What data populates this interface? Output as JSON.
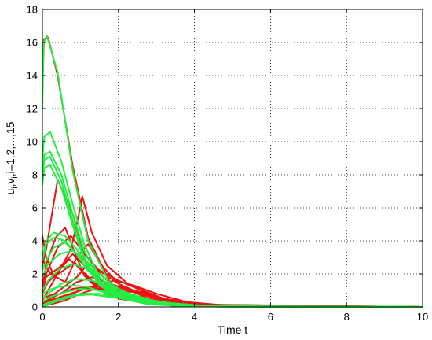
{
  "chart_data": {
    "type": "line",
    "xlabel": "Time t",
    "ylabel": "u_i, v_i, i=1,2,...,15",
    "ylabel_parts": {
      "u": "u",
      "i1": "i",
      "sep1": ",v",
      "i2": "i",
      "rest": ",i=1,2,...,15"
    },
    "xlim": [
      0,
      10
    ],
    "ylim": [
      0,
      18
    ],
    "xticks": [
      0,
      2,
      4,
      6,
      8,
      10
    ],
    "yticks": [
      0,
      2,
      4,
      6,
      8,
      10,
      12,
      14,
      16,
      18
    ],
    "grid": true,
    "legend": "none",
    "colors": {
      "u": "#ee1111",
      "v": "#22ee44"
    },
    "series": [
      {
        "group": "u",
        "x": [
          0,
          0.04,
          0.15,
          0.4,
          0.8,
          1.2,
          1.8,
          2.6,
          3.6,
          5,
          10
        ],
        "y": [
          13.0,
          16.2,
          16.3,
          14.0,
          8.5,
          4.2,
          1.4,
          0.4,
          0.1,
          0.02,
          0
        ]
      },
      {
        "group": "u",
        "x": [
          0,
          0.1,
          0.4,
          0.75,
          0.95,
          1.2,
          1.6,
          2.1,
          3,
          4.2,
          10
        ],
        "y": [
          0.6,
          2.0,
          3.6,
          4.3,
          3.7,
          3.0,
          1.8,
          0.9,
          0.3,
          0.05,
          0
        ]
      },
      {
        "group": "u",
        "x": [
          0,
          0.1,
          0.35,
          0.6,
          0.85,
          1.1,
          1.5,
          2,
          2.8,
          4,
          10
        ],
        "y": [
          1.2,
          2.6,
          4.2,
          4.8,
          3.3,
          1.9,
          1.0,
          0.5,
          0.2,
          0.04,
          0
        ]
      },
      {
        "group": "u",
        "x": [
          0,
          0.15,
          0.45,
          0.75,
          0.95,
          1.05,
          1.3,
          1.7,
          2.3,
          3.2,
          4.5,
          10
        ],
        "y": [
          0.4,
          1.0,
          2.2,
          3.5,
          5.5,
          6.7,
          4.5,
          2.5,
          1.3,
          0.5,
          0.08,
          0
        ]
      },
      {
        "group": "u",
        "x": [
          0,
          0.1,
          0.4,
          0.8,
          1.1,
          1.5,
          2,
          2.6,
          3.4,
          4.5,
          10
        ],
        "y": [
          2.5,
          3.5,
          7.7,
          5.6,
          3.2,
          2.2,
          1.4,
          0.8,
          0.3,
          0.06,
          0
        ]
      },
      {
        "group": "u",
        "x": [
          0,
          0.2,
          0.5,
          0.9,
          1.2,
          1.6,
          2,
          2.4,
          3,
          4,
          10
        ],
        "y": [
          0.3,
          0.6,
          1.1,
          1.8,
          2.6,
          2.1,
          1.6,
          1.2,
          0.6,
          0.15,
          0
        ]
      },
      {
        "group": "u",
        "x": [
          0,
          0.1,
          0.3,
          0.6,
          0.9,
          1.2,
          1.6,
          2.1,
          2.8,
          3.8,
          10
        ],
        "y": [
          4.3,
          3.0,
          1.9,
          1.5,
          3.0,
          3.8,
          2.4,
          1.2,
          0.5,
          0.1,
          0
        ]
      },
      {
        "group": "u",
        "x": [
          0,
          0.2,
          0.6,
          1.0,
          1.4,
          1.9,
          2.4,
          3.0,
          3.8,
          5,
          10
        ],
        "y": [
          0.2,
          0.4,
          0.7,
          1.0,
          1.3,
          1.6,
          1.3,
          0.8,
          0.3,
          0.05,
          0
        ]
      },
      {
        "group": "u",
        "x": [
          0,
          0.15,
          0.4,
          0.7,
          1.0,
          1.3,
          1.7,
          2.2,
          2.9,
          3.8,
          10
        ],
        "y": [
          0.9,
          1.5,
          2.1,
          2.9,
          2.3,
          1.6,
          1.0,
          0.6,
          0.25,
          0.05,
          0
        ]
      },
      {
        "group": "u",
        "x": [
          0,
          0.25,
          0.6,
          1.0,
          1.5,
          2.0,
          2.6,
          3.2,
          4.0,
          5.0,
          10
        ],
        "y": [
          0.1,
          0.3,
          0.6,
          1.0,
          1.3,
          1.1,
          0.8,
          0.5,
          0.2,
          0.04,
          0
        ]
      },
      {
        "group": "u",
        "x": [
          0,
          0.1,
          0.3,
          0.55,
          0.85,
          1.2,
          1.6,
          2.0,
          2.6,
          3.5,
          10
        ],
        "y": [
          3.0,
          2.4,
          1.8,
          2.2,
          2.7,
          1.7,
          1.0,
          0.6,
          0.3,
          0.06,
          0
        ]
      },
      {
        "group": "u",
        "x": [
          0,
          0.2,
          0.5,
          0.8,
          1.2,
          1.8,
          2.4,
          3.0,
          3.8,
          10
        ],
        "y": [
          0.5,
          0.7,
          0.8,
          1.1,
          1.2,
          1.0,
          0.9,
          0.5,
          0.15,
          0
        ]
      },
      {
        "group": "u",
        "x": [
          0,
          0.15,
          0.45,
          0.8,
          1.15,
          1.5,
          1.9,
          2.4,
          3.2,
          4.2,
          10
        ],
        "y": [
          1.6,
          1.9,
          2.4,
          3.2,
          2.4,
          1.5,
          1.1,
          0.7,
          0.3,
          0.05,
          0
        ]
      },
      {
        "group": "u",
        "x": [
          0,
          0.2,
          0.55,
          0.9,
          1.3,
          1.8,
          2.3,
          2.9,
          3.6,
          4.6,
          10
        ],
        "y": [
          0.25,
          0.5,
          0.9,
          1.5,
          1.8,
          1.4,
          1.0,
          0.6,
          0.25,
          0.05,
          0
        ]
      },
      {
        "group": "u",
        "x": [
          0,
          0.2,
          0.6,
          1.0,
          1.4,
          2.0,
          2.6,
          3.2,
          4.0,
          5.0,
          10
        ],
        "y": [
          0.05,
          0.15,
          0.4,
          0.8,
          1.1,
          1.2,
          0.9,
          0.5,
          0.2,
          0.04,
          0
        ]
      },
      {
        "group": "v",
        "x": [
          0,
          0.03,
          0.12,
          0.4,
          0.8,
          1.2,
          1.8,
          2.6,
          3.6,
          5,
          10
        ],
        "y": [
          12.0,
          16.0,
          16.4,
          14.2,
          8.2,
          4.0,
          1.3,
          0.35,
          0.08,
          0.02,
          0
        ]
      },
      {
        "group": "v",
        "x": [
          0,
          0.05,
          0.2,
          0.5,
          0.8,
          1.1,
          1.5,
          2.0,
          2.8,
          4.0,
          10
        ],
        "y": [
          9.0,
          10.3,
          10.6,
          8.8,
          6.2,
          3.8,
          1.8,
          0.8,
          0.25,
          0.05,
          0
        ]
      },
      {
        "group": "v",
        "x": [
          0,
          0.05,
          0.2,
          0.5,
          0.8,
          1.1,
          1.5,
          2.0,
          2.8,
          4.0,
          10
        ],
        "y": [
          8.0,
          9.2,
          9.4,
          8.0,
          5.6,
          3.4,
          1.6,
          0.7,
          0.2,
          0.04,
          0
        ]
      },
      {
        "group": "v",
        "x": [
          0,
          0.05,
          0.2,
          0.5,
          0.8,
          1.1,
          1.5,
          2.0,
          2.8,
          4.0,
          10
        ],
        "y": [
          7.8,
          8.9,
          9.1,
          7.6,
          5.2,
          3.0,
          1.4,
          0.6,
          0.18,
          0.04,
          0
        ]
      },
      {
        "group": "v",
        "x": [
          0,
          0.05,
          0.2,
          0.5,
          0.8,
          1.1,
          1.5,
          2.0,
          2.8,
          4.0,
          10
        ],
        "y": [
          7.4,
          8.4,
          8.6,
          7.2,
          4.9,
          2.8,
          1.3,
          0.55,
          0.15,
          0.03,
          0
        ]
      },
      {
        "group": "v",
        "x": [
          0,
          0.1,
          0.3,
          0.6,
          0.9,
          1.2,
          1.6,
          2.1,
          2.8,
          3.8,
          10
        ],
        "y": [
          2.8,
          3.8,
          4.2,
          4.0,
          3.2,
          2.2,
          1.2,
          0.6,
          0.2,
          0.04,
          0
        ]
      },
      {
        "group": "v",
        "x": [
          0,
          0.1,
          0.3,
          0.6,
          0.9,
          1.2,
          1.6,
          2.1,
          2.8,
          3.8,
          10
        ],
        "y": [
          3.0,
          4.0,
          4.5,
          4.3,
          3.5,
          2.4,
          1.3,
          0.6,
          0.2,
          0.04,
          0
        ]
      },
      {
        "group": "v",
        "x": [
          0,
          0.15,
          0.45,
          0.8,
          1.1,
          1.5,
          2.0,
          2.6,
          3.4,
          4.5,
          10
        ],
        "y": [
          1.8,
          2.6,
          3.2,
          3.4,
          2.9,
          2.0,
          1.1,
          0.5,
          0.15,
          0.03,
          0
        ]
      },
      {
        "group": "v",
        "x": [
          0,
          0.15,
          0.45,
          0.8,
          1.2,
          1.6,
          2.1,
          2.7,
          3.5,
          4.6,
          10
        ],
        "y": [
          1.0,
          1.6,
          2.3,
          2.6,
          2.3,
          1.6,
          0.9,
          0.4,
          0.12,
          0.02,
          0
        ]
      },
      {
        "group": "v",
        "x": [
          0,
          0.2,
          0.5,
          0.9,
          1.3,
          1.8,
          2.3,
          2.9,
          3.7,
          4.8,
          10
        ],
        "y": [
          0.5,
          0.9,
          1.4,
          1.7,
          1.6,
          1.2,
          0.8,
          0.4,
          0.12,
          0.02,
          0
        ]
      },
      {
        "group": "v",
        "x": [
          0,
          0.2,
          0.6,
          1.0,
          1.5,
          2.0,
          2.6,
          3.3,
          4.2,
          5.5,
          10
        ],
        "y": [
          0.3,
          0.6,
          0.9,
          1.1,
          1.0,
          0.8,
          0.5,
          0.25,
          0.08,
          0.01,
          0
        ]
      },
      {
        "group": "v",
        "x": [
          0,
          0.2,
          0.6,
          1.0,
          1.5,
          2.0,
          2.6,
          3.3,
          4.2,
          5.5,
          10
        ],
        "y": [
          0.1,
          0.3,
          0.6,
          0.8,
          0.8,
          0.6,
          0.4,
          0.2,
          0.06,
          0.01,
          0
        ]
      },
      {
        "group": "v",
        "x": [
          0,
          0.1,
          0.3,
          0.6,
          1.0,
          1.4,
          1.9,
          2.5,
          3.3,
          4.3,
          10
        ],
        "y": [
          2.2,
          2.8,
          3.6,
          3.9,
          3.0,
          2.0,
          1.0,
          0.45,
          0.15,
          0.03,
          0
        ]
      },
      {
        "group": "v",
        "x": [
          0,
          0.15,
          0.4,
          0.8,
          1.2,
          1.6,
          2.1,
          2.7,
          3.5,
          4.6,
          10
        ],
        "y": [
          0.8,
          1.0,
          1.2,
          1.3,
          1.2,
          0.9,
          0.6,
          0.3,
          0.1,
          0.02,
          0
        ]
      },
      {
        "group": "v",
        "x": [
          0,
          0.2,
          0.5,
          0.9,
          1.3,
          1.8,
          2.4,
          3.0,
          3.8,
          5.0,
          10
        ],
        "y": [
          0.0,
          0.2,
          0.45,
          0.7,
          0.75,
          0.6,
          0.4,
          0.2,
          0.06,
          0.01,
          0
        ]
      }
    ]
  }
}
